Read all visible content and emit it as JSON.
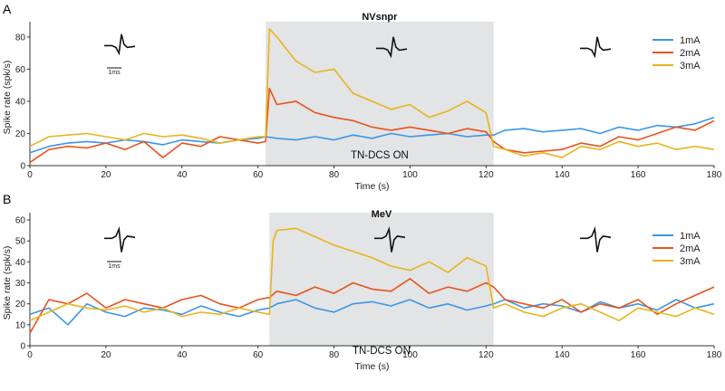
{
  "colors": {
    "c1mA": "#3a96e6",
    "c2mA": "#e8521c",
    "c3mA": "#e8b41c",
    "shade": "#e3e4e5",
    "axis": "#333333"
  },
  "chart_data": [
    {
      "panel_label": "A",
      "type": "line",
      "title": "NVsnpr",
      "xlabel": "Time (s)",
      "ylabel": "Spike rate (spk/s)",
      "xlim": [
        0,
        180
      ],
      "ylim": [
        0,
        85
      ],
      "xticks": [
        "0",
        "20",
        "40",
        "60",
        "80",
        "100",
        "120",
        "140",
        "160",
        "180"
      ],
      "yticks": [
        "0",
        "20",
        "40",
        "60",
        "80"
      ],
      "shaded_region": [
        62,
        122
      ],
      "shaded_label": "TN-DCS ON",
      "scale_label": "1ms",
      "legend": [
        "1mA",
        "2mA",
        "3mA"
      ],
      "series": [
        {
          "name": "1mA",
          "color_key": "c1mA",
          "x": [
            0,
            5,
            10,
            15,
            20,
            25,
            30,
            35,
            40,
            45,
            50,
            55,
            60,
            62,
            65,
            70,
            75,
            80,
            85,
            90,
            95,
            100,
            105,
            110,
            115,
            120,
            122,
            125,
            130,
            135,
            140,
            145,
            150,
            155,
            160,
            165,
            170,
            175,
            180
          ],
          "values": [
            8,
            12,
            14,
            15,
            14,
            16,
            15,
            13,
            16,
            15,
            14,
            16,
            17,
            18,
            17,
            16,
            18,
            16,
            19,
            17,
            20,
            18,
            19,
            20,
            18,
            19,
            19,
            22,
            23,
            21,
            22,
            23,
            20,
            24,
            22,
            25,
            24,
            26,
            30
          ]
        },
        {
          "name": "2mA",
          "color_key": "c2mA",
          "x": [
            0,
            5,
            10,
            15,
            20,
            25,
            30,
            35,
            40,
            45,
            50,
            55,
            60,
            62,
            63,
            65,
            70,
            75,
            80,
            85,
            90,
            95,
            100,
            105,
            110,
            115,
            120,
            122,
            125,
            130,
            135,
            140,
            145,
            150,
            155,
            160,
            165,
            170,
            175,
            180
          ],
          "values": [
            2,
            10,
            12,
            11,
            14,
            10,
            15,
            5,
            14,
            12,
            18,
            16,
            14,
            15,
            48,
            38,
            40,
            33,
            30,
            28,
            24,
            22,
            24,
            22,
            20,
            23,
            21,
            15,
            10,
            8,
            9,
            10,
            14,
            12,
            18,
            16,
            20,
            24,
            22,
            28
          ]
        },
        {
          "name": "3mA",
          "color_key": "c3mA",
          "x": [
            0,
            5,
            10,
            15,
            20,
            25,
            30,
            35,
            40,
            45,
            50,
            55,
            60,
            62,
            63,
            65,
            70,
            75,
            80,
            85,
            90,
            95,
            100,
            105,
            110,
            115,
            120,
            122,
            125,
            130,
            135,
            140,
            145,
            150,
            155,
            160,
            165,
            170,
            175,
            180
          ],
          "values": [
            12,
            18,
            19,
            20,
            18,
            16,
            20,
            18,
            19,
            17,
            14,
            16,
            18,
            18,
            85,
            80,
            65,
            58,
            60,
            45,
            40,
            35,
            38,
            30,
            34,
            40,
            33,
            12,
            10,
            6,
            8,
            5,
            12,
            10,
            15,
            12,
            14,
            10,
            12,
            10
          ]
        }
      ]
    },
    {
      "panel_label": "B",
      "type": "line",
      "title": "MeV",
      "xlabel": "Time (s)",
      "ylabel": "Spike rate (spk/s)",
      "xlim": [
        0,
        180
      ],
      "ylim": [
        0,
        60
      ],
      "xticks": [
        "0",
        "20",
        "40",
        "60",
        "80",
        "100",
        "120",
        "140",
        "160",
        "180"
      ],
      "yticks": [
        "0",
        "10",
        "20",
        "30",
        "40",
        "50",
        "60"
      ],
      "shaded_region": [
        63,
        122
      ],
      "shaded_label": "TN-DCS ON",
      "scale_label": "1ms",
      "legend": [
        "1mA",
        "2mA",
        "3mA"
      ],
      "series": [
        {
          "name": "1mA",
          "color_key": "c1mA",
          "x": [
            0,
            5,
            10,
            15,
            20,
            25,
            30,
            35,
            40,
            45,
            50,
            55,
            60,
            63,
            65,
            70,
            75,
            80,
            85,
            90,
            95,
            100,
            105,
            110,
            115,
            120,
            122,
            125,
            130,
            135,
            140,
            145,
            150,
            155,
            160,
            165,
            170,
            175,
            180
          ],
          "values": [
            15,
            18,
            10,
            20,
            16,
            14,
            18,
            17,
            15,
            19,
            16,
            14,
            17,
            18,
            20,
            22,
            18,
            16,
            20,
            21,
            19,
            22,
            18,
            20,
            17,
            19,
            20,
            22,
            18,
            20,
            19,
            16,
            21,
            18,
            20,
            17,
            22,
            18,
            20
          ]
        },
        {
          "name": "2mA",
          "color_key": "c2mA",
          "x": [
            0,
            5,
            10,
            15,
            20,
            25,
            30,
            35,
            40,
            45,
            50,
            55,
            60,
            63,
            65,
            70,
            75,
            80,
            85,
            90,
            95,
            100,
            105,
            110,
            115,
            120,
            122,
            125,
            130,
            135,
            140,
            145,
            150,
            155,
            160,
            165,
            170,
            175,
            180
          ],
          "values": [
            6,
            22,
            20,
            25,
            18,
            22,
            20,
            18,
            22,
            24,
            20,
            18,
            22,
            23,
            26,
            24,
            28,
            25,
            30,
            27,
            26,
            32,
            25,
            28,
            26,
            30,
            28,
            22,
            20,
            18,
            22,
            16,
            20,
            18,
            22,
            15,
            20,
            24,
            28
          ]
        },
        {
          "name": "3mA",
          "color_key": "c3mA",
          "x": [
            0,
            5,
            10,
            15,
            20,
            25,
            30,
            35,
            40,
            45,
            50,
            55,
            60,
            63,
            64,
            65,
            70,
            75,
            80,
            85,
            90,
            95,
            100,
            105,
            110,
            115,
            120,
            122,
            125,
            130,
            135,
            140,
            145,
            150,
            155,
            160,
            165,
            170,
            175,
            180
          ],
          "values": [
            12,
            16,
            20,
            18,
            17,
            19,
            16,
            18,
            14,
            16,
            15,
            18,
            16,
            15,
            50,
            55,
            56,
            52,
            48,
            45,
            42,
            38,
            36,
            40,
            35,
            42,
            38,
            18,
            20,
            16,
            14,
            18,
            20,
            16,
            12,
            18,
            16,
            14,
            18,
            15
          ]
        }
      ]
    }
  ]
}
